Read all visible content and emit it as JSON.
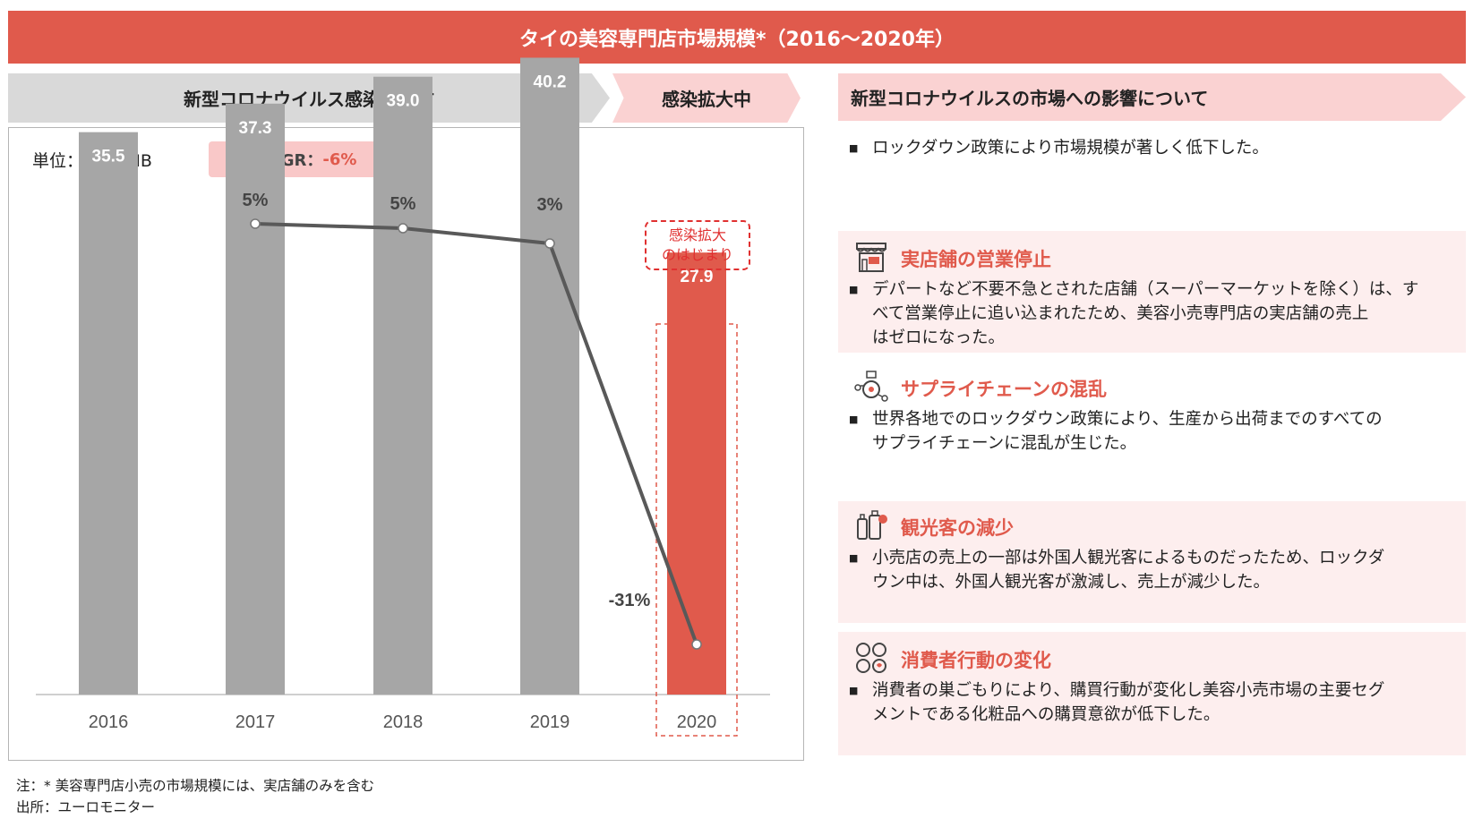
{
  "title": "タイの美容専門店市場規模*（2016～2020年）",
  "header_before": "新型コロナウイルス感染拡大前",
  "header_during": "感染拡大中",
  "header_impact": "新型コロナウイルスの市場への影響について",
  "unit_label": "単位：十億THB",
  "cagr_label": "CAGR：",
  "cagr_value": "-6%",
  "start_note_line1": "感染拡大",
  "start_note_line2": "のはじまり",
  "chart_data": {
    "type": "bar",
    "categories": [
      "2016",
      "2017",
      "2018",
      "2019",
      "2020"
    ],
    "values": [
      35.5,
      37.3,
      39.0,
      40.2,
      27.9
    ],
    "value_labels": [
      "35.5",
      "37.3",
      "39.0",
      "40.2",
      "27.9"
    ],
    "growth_labels": [
      "5%",
      "5%",
      "3%",
      "-31%"
    ],
    "ylim": [
      0,
      45
    ],
    "highlight_category": "2020",
    "colors": {
      "bar": "#a6a6a6",
      "highlight": "#e05a4c",
      "line": "#595959"
    }
  },
  "impact": {
    "lockdown_text": "ロックダウン政策により市場規模が著しく低下した。",
    "sections": [
      {
        "icon": "storefront-icon",
        "title": "実店舗の営業停止",
        "lines": [
          "デパートなど不要不急とされた店舗（スーパーマーケットを除く）は、す",
          "べて営業停止に追い込まれたため、美容小売専門店の実店舗の売上",
          "はゼロになった。"
        ]
      },
      {
        "icon": "supply-chain-icon",
        "title": "サプライチェーンの混乱",
        "lines": [
          "世界各地でのロックダウン政策により、生産から出荷までのすべての",
          "サプライチェーンに混乱が生じた。"
        ]
      },
      {
        "icon": "tourist-icon",
        "title": "観光客の減少",
        "lines": [
          "小売店の売上の一部は外国人観光客によるものだったため、ロックダ",
          "ウン中は、外国人観光客が激減し、売上が減少した。"
        ]
      },
      {
        "icon": "consumer-behavior-icon",
        "title": "消費者行動の変化",
        "lines": [
          "消費者の巣ごもりにより、購買行動が変化し美容小売市場の主要セグ",
          "メントである化粧品への購買意欲が低下した。"
        ]
      }
    ]
  },
  "footnote_line1": "注：* 美容専門店小売の市場規模には、実店舗のみを含む",
  "footnote_line2": "出所：ユーロモニター"
}
